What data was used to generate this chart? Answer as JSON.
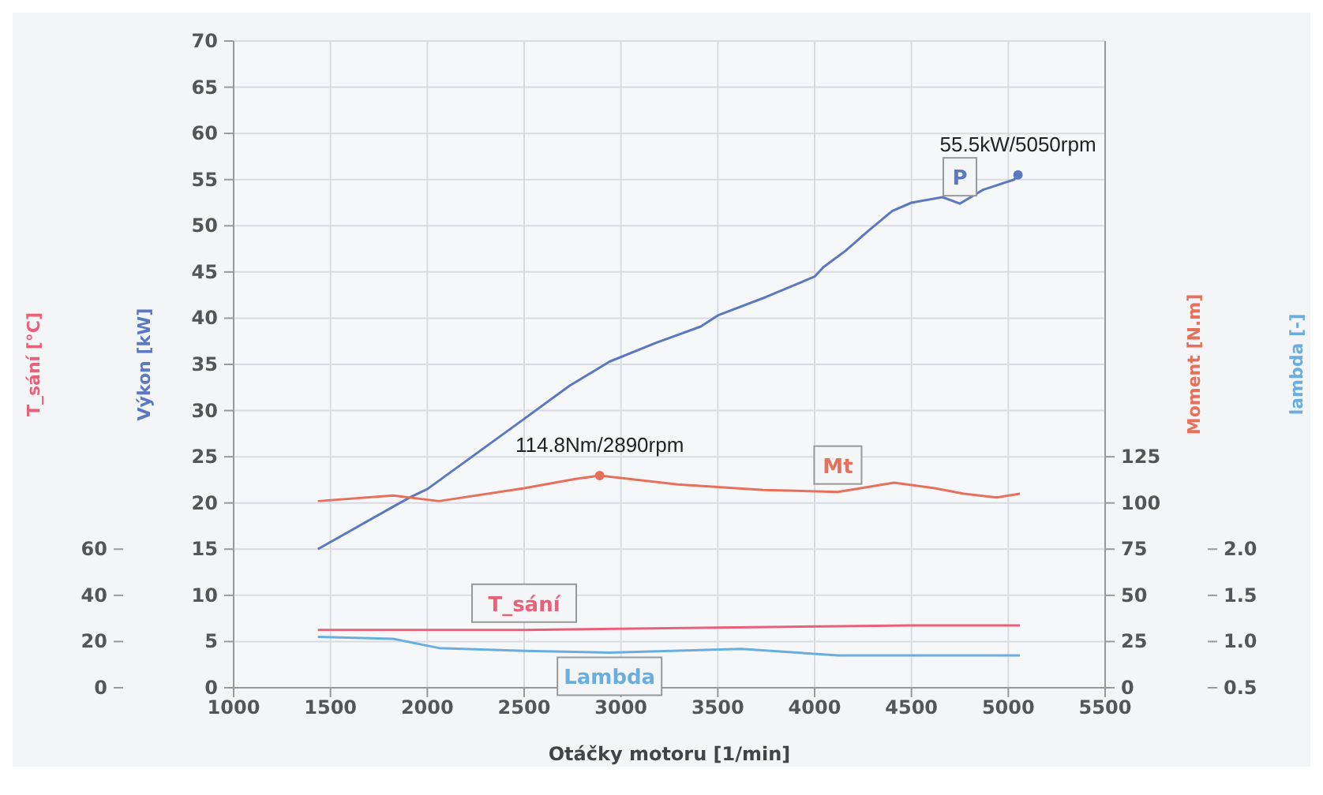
{
  "chart_data": [
    {
      "type": "line",
      "xlabel": "Otáčky motoru  [1/min]",
      "ylabel": "Výkon  [kW]",
      "y2label": "Moment  [N.m]",
      "y3label": "T_sání  [°C]",
      "xlim": [
        1000,
        5500
      ],
      "xticks": [
        1000,
        1500,
        2000,
        2500,
        3000,
        3500,
        4000,
        4500,
        5000,
        5500
      ],
      "ylim": [
        0,
        70
      ],
      "yticks": [
        0,
        5,
        10,
        15,
        20,
        25,
        30,
        35,
        40,
        45,
        50,
        55,
        60,
        65,
        70
      ],
      "y2lim": [
        0,
        350
      ],
      "y2ticks": [
        0,
        25,
        50,
        75,
        100,
        125
      ],
      "y3lim": [
        0,
        280
      ],
      "y3ticks": [
        0,
        20,
        40,
        60
      ],
      "grid": true,
      "series": [
        {
          "name": "P",
          "color": "#5b78c0",
          "x": [
            1435,
            1824,
            1910,
            2000,
            2500,
            2735,
            2941,
            3176,
            3412,
            3500,
            3750,
            4000,
            4044,
            4160,
            4280,
            4400,
            4500,
            4660,
            4750,
            4870,
            5030,
            5050
          ],
          "values": [
            15.0,
            19.6,
            20.6,
            21.5,
            29.1,
            32.7,
            35.3,
            37.3,
            39.1,
            40.3,
            42.3,
            44.5,
            45.5,
            47.3,
            49.5,
            51.6,
            52.5,
            53.1,
            52.4,
            53.9,
            55.0,
            55.5
          ]
        },
        {
          "name": "Mt",
          "color": "#e8705a",
          "axis": "y2",
          "x": [
            1435,
            1824,
            2060,
            2500,
            2765,
            2890,
            3294,
            3735,
            4120,
            4410,
            4620,
            4770,
            4940,
            5060
          ],
          "values": [
            101,
            104,
            101,
            108,
            113,
            114.8,
            110,
            107,
            106,
            111,
            108,
            105,
            103,
            105
          ]
        },
        {
          "name": "T_sání",
          "color": "#e8607a",
          "axis": "y3",
          "x": [
            1435,
            2500,
            3500,
            4500,
            5060
          ],
          "values": [
            25,
            25,
            26,
            27,
            27
          ]
        }
      ],
      "annotations": [
        "55.5kW/5050rpm",
        "114.8Nm/2890rpm"
      ]
    },
    {
      "type": "line",
      "ylabel": "lambda  [-]",
      "xlim": [
        1000,
        5500
      ],
      "ylim": [
        0.5,
        7.5
      ],
      "yticks": [
        0.5,
        {
          "value": 1,
          "label": "1.0"
        },
        1.5,
        {
          "value": 2,
          "label": "2.0"
        }
      ],
      "tick_labels": "y",
      "series": [
        {
          "name": "Lambda",
          "color": "#6aaee0",
          "x": [
            1435,
            1824,
            2060,
            2500,
            2941,
            3620,
            4120,
            5060
          ],
          "values": [
            1.05,
            1.03,
            0.93,
            0.9,
            0.88,
            0.92,
            0.85,
            0.85
          ]
        }
      ]
    }
  ]
}
